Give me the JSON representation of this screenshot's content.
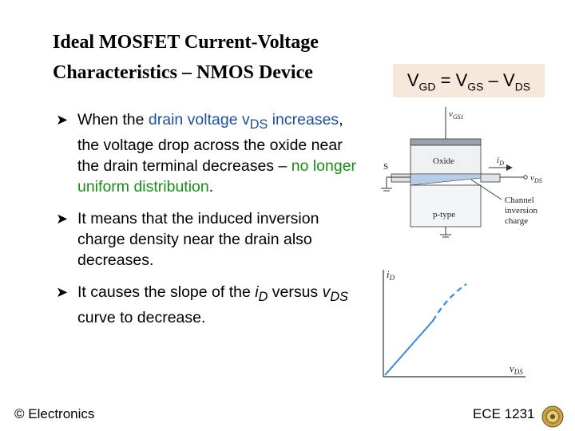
{
  "title": {
    "line1": "Ideal MOSFET Current-Voltage",
    "line2": "Characteristics – NMOS Device"
  },
  "formula": {
    "v1": "V",
    "v1_sub": "GD",
    "eq": " = ",
    "v2": "V",
    "v2_sub": "GS",
    "minus": " – ",
    "v3": "V",
    "v3_sub": "DS"
  },
  "bullets": [
    {
      "seg1": "When the ",
      "seg2_blue": "drain voltage ",
      "seg3_var": "v",
      "seg3_sub": "DS",
      "seg4_blue": "increases",
      "seg5": ", the voltage drop across the oxide near the drain terminal decreases – ",
      "seg6_green": "no longer uniform distribution",
      "seg7": "."
    },
    {
      "text": "It means that the induced inversion charge density near the drain also decreases."
    },
    {
      "seg1": "It causes the slope of the ",
      "var1": "i",
      "var1_sub": "D",
      "seg2": " versus ",
      "var2": "v",
      "var2_sub": "DS",
      "seg3": " curve to decrease."
    }
  ],
  "diagram": {
    "vgs_label": "v",
    "vgs_sub": "GS1",
    "oxide_label": "Oxide",
    "s_label": "S",
    "id_label": "i",
    "id_sub": "D",
    "vds_label": "v",
    "vds_sub": "DS",
    "ptype_label": "p-type",
    "channel_label_1": "Channel",
    "channel_label_2": "inversion",
    "channel_label_3": "charge",
    "graph_y_label": "i",
    "graph_y_sub": "D",
    "graph_x_label": "v",
    "graph_x_sub": "DS"
  },
  "footer": {
    "left": "© Electronics",
    "right": "ECE 1231"
  }
}
